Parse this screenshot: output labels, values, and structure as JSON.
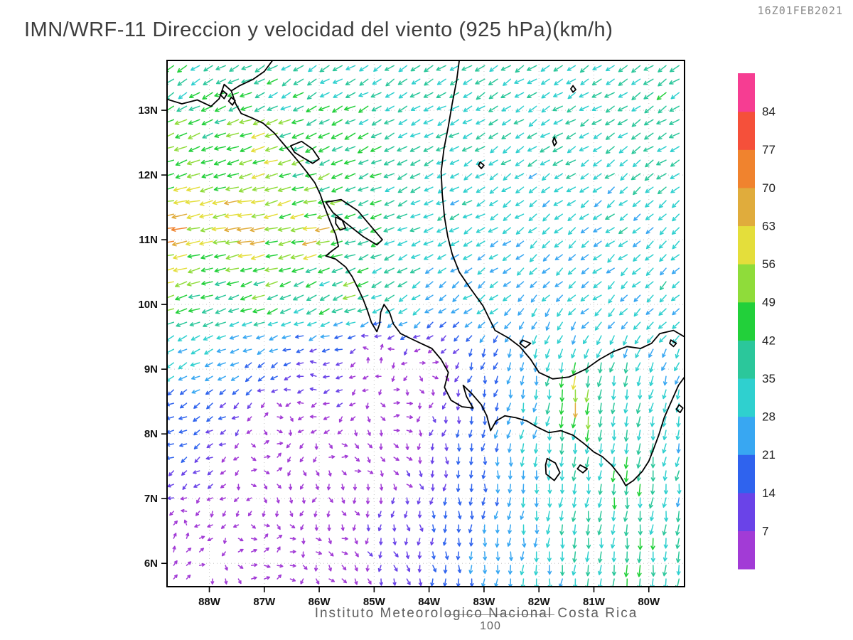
{
  "header": {
    "timestamp": "16Z01FEB2021",
    "title": "IMN/WRF-11 Direccion y velocidad del viento (925 hPa)(km/h)"
  },
  "footer": {
    "institution": "Instituto Meteorologico Nacional Costa Rica",
    "page_number": "100"
  },
  "chart_data": {
    "type": "vector_field",
    "variable": "wind direction and speed",
    "model": "IMN/WRF-11",
    "level_hPa": 925,
    "units": "km/h",
    "valid_time": "16Z01FEB2021",
    "region": "Costa Rica / Central America",
    "x_axis": {
      "tick_labels": [
        "88W",
        "87W",
        "86W",
        "85W",
        "84W",
        "83W",
        "82W",
        "81W",
        "80W"
      ],
      "tick_lons": [
        -88,
        -87,
        -86,
        -85,
        -84,
        -83,
        -82,
        -81,
        -80
      ],
      "range": [
        -88.77,
        -79.35
      ]
    },
    "y_axis": {
      "tick_labels": [
        "13N",
        "12N",
        "11N",
        "10N",
        "9N",
        "8N",
        "7N",
        "6N"
      ],
      "tick_lats": [
        13,
        12,
        11,
        10,
        9,
        8,
        7,
        6
      ],
      "range": [
        5.64,
        13.77
      ]
    },
    "colorbar": {
      "levels": [
        7,
        14,
        21,
        28,
        35,
        42,
        49,
        56,
        63,
        70,
        77,
        84
      ],
      "colors": [
        "#a23bd6",
        "#6a43e8",
        "#2f63ee",
        "#38a7f2",
        "#2fd0cf",
        "#2bc79b",
        "#22d03a",
        "#8fdc3a",
        "#e4de3b",
        "#e0ac3c",
        "#f0832e",
        "#f5503a",
        "#f63d92"
      ],
      "units": "km/h"
    },
    "wind_control_points": [
      [
        -88.6,
        13.6,
        -30,
        -22
      ],
      [
        -86.5,
        13.6,
        -30,
        -20
      ],
      [
        -84.5,
        13.6,
        -28,
        -18
      ],
      [
        -82.5,
        13.6,
        -32,
        -20
      ],
      [
        -79.8,
        13.6,
        -34,
        -22
      ],
      [
        -88.6,
        12.4,
        -48,
        -18
      ],
      [
        -87.0,
        12.4,
        -52,
        -16
      ],
      [
        -85.5,
        12.5,
        -40,
        -18
      ],
      [
        -83.5,
        12.5,
        -30,
        -16
      ],
      [
        -81.5,
        12.5,
        -30,
        -18
      ],
      [
        -79.8,
        12.5,
        -32,
        -20
      ],
      [
        -88.6,
        11.2,
        -68,
        -10
      ],
      [
        -87.2,
        11.2,
        -72,
        -8
      ],
      [
        -86.0,
        11.1,
        -62,
        -10
      ],
      [
        -84.8,
        11.3,
        -38,
        -14
      ],
      [
        -83.0,
        11.3,
        -28,
        -16
      ],
      [
        -80.5,
        11.2,
        -26,
        -18
      ],
      [
        -88.6,
        10.3,
        -52,
        -16
      ],
      [
        -87.0,
        10.2,
        -46,
        -16
      ],
      [
        -85.8,
        10.1,
        -36,
        -18
      ],
      [
        -85.3,
        10.15,
        -48,
        -16
      ],
      [
        -84.5,
        10.3,
        -32,
        -20
      ],
      [
        -83.0,
        10.2,
        -24,
        -16
      ],
      [
        -81.0,
        10.2,
        -24,
        -18
      ],
      [
        -79.7,
        10.0,
        -24,
        -20
      ],
      [
        -88.6,
        9.2,
        -28,
        -16
      ],
      [
        -87.2,
        9.0,
        -18,
        -10
      ],
      [
        -86.0,
        9.0,
        -6,
        2
      ],
      [
        -85.0,
        9.2,
        4,
        4
      ],
      [
        -84.0,
        9.0,
        6,
        2
      ],
      [
        -83.0,
        8.8,
        -2,
        -14
      ],
      [
        -82.3,
        8.8,
        -4,
        -26
      ],
      [
        -81.3,
        8.6,
        -4,
        -62
      ],
      [
        -80.6,
        8.4,
        -4,
        -38
      ],
      [
        -79.7,
        8.6,
        -6,
        -28
      ],
      [
        -88.7,
        8.4,
        -14,
        -8
      ],
      [
        -87.0,
        7.6,
        6,
        2
      ],
      [
        -85.5,
        7.6,
        7,
        0
      ],
      [
        -84.3,
        7.5,
        6,
        -4
      ],
      [
        -83.3,
        7.4,
        2,
        -16
      ],
      [
        -82.3,
        7.4,
        -2,
        -28
      ],
      [
        -81.3,
        7.4,
        -3,
        -34
      ],
      [
        -80.3,
        7.4,
        -4,
        -44
      ],
      [
        -79.6,
        7.4,
        -4,
        -30
      ],
      [
        -88.6,
        6.2,
        4,
        4
      ],
      [
        -87.0,
        6.1,
        6,
        3
      ],
      [
        -85.6,
        6.1,
        6,
        -2
      ],
      [
        -84.4,
        6.1,
        4,
        -10
      ],
      [
        -83.3,
        6.1,
        2,
        -20
      ],
      [
        -82.2,
        6.1,
        -2,
        -30
      ],
      [
        -81.0,
        6.1,
        -3,
        -36
      ],
      [
        -80.2,
        6.1,
        -4,
        -46
      ],
      [
        -79.6,
        6.1,
        -3,
        -34
      ],
      [
        -84.6,
        8.4,
        7,
        1
      ],
      [
        -86.8,
        8.3,
        6,
        2
      ]
    ],
    "coastlines": [
      [
        [
          -88.77,
          13.17
        ],
        [
          -88.5,
          13.1
        ],
        [
          -88.22,
          13.16
        ],
        [
          -87.97,
          13.06
        ],
        [
          -87.82,
          13.18
        ],
        [
          -87.73,
          13.4
        ],
        [
          -87.6,
          13.3
        ],
        [
          -87.52,
          13.1
        ],
        [
          -87.42,
          12.95
        ],
        [
          -87.22,
          12.88
        ],
        [
          -87.02,
          12.8
        ],
        [
          -86.82,
          12.65
        ],
        [
          -86.6,
          12.43
        ],
        [
          -86.4,
          12.23
        ],
        [
          -86.23,
          12.05
        ],
        [
          -86.08,
          11.88
        ],
        [
          -85.98,
          11.7
        ],
        [
          -85.9,
          11.5
        ],
        [
          -85.8,
          11.28
        ],
        [
          -85.7,
          11.08
        ],
        [
          -85.65,
          10.9
        ],
        [
          -85.78,
          10.82
        ],
        [
          -85.88,
          10.75
        ],
        [
          -85.7,
          10.7
        ],
        [
          -85.52,
          10.58
        ],
        [
          -85.4,
          10.43
        ],
        [
          -85.3,
          10.26
        ],
        [
          -85.2,
          10.08
        ],
        [
          -85.12,
          9.9
        ],
        [
          -85.05,
          9.72
        ],
        [
          -84.95,
          9.58
        ],
        [
          -84.9,
          9.7
        ],
        [
          -84.88,
          9.88
        ],
        [
          -84.82,
          10.0
        ],
        [
          -84.72,
          9.88
        ],
        [
          -84.65,
          9.7
        ],
        [
          -84.52,
          9.55
        ],
        [
          -84.35,
          9.48
        ],
        [
          -84.15,
          9.4
        ],
        [
          -83.95,
          9.32
        ],
        [
          -83.78,
          9.15
        ],
        [
          -83.65,
          8.95
        ],
        [
          -83.72,
          8.72
        ],
        [
          -83.6,
          8.52
        ],
        [
          -83.4,
          8.42
        ],
        [
          -83.2,
          8.4
        ],
        [
          -83.32,
          8.58
        ],
        [
          -83.38,
          8.75
        ],
        [
          -83.22,
          8.62
        ],
        [
          -83.05,
          8.45
        ],
        [
          -82.95,
          8.28
        ],
        [
          -82.88,
          8.05
        ],
        [
          -82.78,
          8.2
        ],
        [
          -82.62,
          8.28
        ],
        [
          -82.42,
          8.25
        ],
        [
          -82.22,
          8.2
        ],
        [
          -82.02,
          8.1
        ],
        [
          -81.82,
          8.02
        ],
        [
          -81.6,
          8.05
        ],
        [
          -81.38,
          7.98
        ],
        [
          -81.18,
          7.85
        ],
        [
          -81.0,
          7.72
        ],
        [
          -80.85,
          7.65
        ],
        [
          -80.68,
          7.52
        ],
        [
          -80.52,
          7.35
        ],
        [
          -80.42,
          7.2
        ],
        [
          -80.28,
          7.28
        ],
        [
          -80.12,
          7.42
        ],
        [
          -80.0,
          7.58
        ],
        [
          -79.92,
          7.75
        ],
        [
          -79.82,
          7.98
        ],
        [
          -79.72,
          8.25
        ],
        [
          -79.58,
          8.52
        ],
        [
          -79.46,
          8.75
        ],
        [
          -79.35,
          8.88
        ]
      ],
      [
        [
          -79.35,
          9.5
        ],
        [
          -79.55,
          9.6
        ],
        [
          -79.8,
          9.55
        ],
        [
          -79.95,
          9.4
        ],
        [
          -80.15,
          9.32
        ],
        [
          -80.4,
          9.35
        ],
        [
          -80.65,
          9.27
        ],
        [
          -80.9,
          9.15
        ],
        [
          -81.15,
          9.0
        ],
        [
          -81.45,
          8.88
        ],
        [
          -81.75,
          8.85
        ],
        [
          -82.0,
          8.95
        ],
        [
          -82.15,
          9.15
        ],
        [
          -82.35,
          9.35
        ],
        [
          -82.55,
          9.48
        ],
        [
          -82.8,
          9.6
        ],
        [
          -83.02,
          9.98
        ],
        [
          -83.25,
          10.25
        ],
        [
          -83.45,
          10.5
        ],
        [
          -83.58,
          10.78
        ],
        [
          -83.66,
          11.05
        ],
        [
          -83.72,
          11.35
        ],
        [
          -83.76,
          11.7
        ],
        [
          -83.78,
          12.05
        ],
        [
          -83.73,
          12.4
        ],
        [
          -83.65,
          12.75
        ],
        [
          -83.58,
          13.1
        ],
        [
          -83.5,
          13.45
        ],
        [
          -83.45,
          13.77
        ]
      ],
      [
        [
          -86.85,
          13.77
        ],
        [
          -87.0,
          13.6
        ],
        [
          -87.2,
          13.48
        ],
        [
          -87.45,
          13.38
        ],
        [
          -87.6,
          13.3
        ]
      ],
      [
        [
          -86.52,
          12.45
        ],
        [
          -86.32,
          12.52
        ],
        [
          -86.12,
          12.4
        ],
        [
          -86.0,
          12.25
        ],
        [
          -86.12,
          12.18
        ],
        [
          -86.3,
          12.27
        ],
        [
          -86.45,
          12.35
        ],
        [
          -86.52,
          12.45
        ]
      ],
      [
        [
          -85.88,
          11.58
        ],
        [
          -85.6,
          11.62
        ],
        [
          -85.3,
          11.45
        ],
        [
          -85.05,
          11.2
        ],
        [
          -84.85,
          11.0
        ],
        [
          -84.95,
          10.92
        ],
        [
          -85.2,
          11.05
        ],
        [
          -85.5,
          11.25
        ],
        [
          -85.75,
          11.42
        ],
        [
          -85.88,
          11.58
        ]
      ],
      [
        [
          -85.7,
          11.35
        ],
        [
          -85.58,
          11.3
        ],
        [
          -85.52,
          11.18
        ],
        [
          -85.62,
          11.15
        ],
        [
          -85.7,
          11.25
        ],
        [
          -85.7,
          11.35
        ]
      ]
    ],
    "islands": [
      [
        [
          -87.75,
          13.3
        ],
        [
          -87.68,
          13.25
        ],
        [
          -87.73,
          13.18
        ],
        [
          -87.8,
          13.24
        ],
        [
          -87.75,
          13.3
        ]
      ],
      [
        [
          -87.6,
          13.2
        ],
        [
          -87.53,
          13.15
        ],
        [
          -87.58,
          13.08
        ],
        [
          -87.65,
          13.14
        ],
        [
          -87.6,
          13.2
        ]
      ],
      [
        [
          -81.85,
          7.62
        ],
        [
          -81.7,
          7.55
        ],
        [
          -81.62,
          7.4
        ],
        [
          -81.72,
          7.28
        ],
        [
          -81.87,
          7.38
        ],
        [
          -81.88,
          7.52
        ],
        [
          -81.85,
          7.62
        ]
      ],
      [
        [
          -81.25,
          7.52
        ],
        [
          -81.12,
          7.46
        ],
        [
          -81.2,
          7.4
        ],
        [
          -81.3,
          7.46
        ],
        [
          -81.25,
          7.52
        ]
      ],
      [
        [
          -81.72,
          12.58
        ],
        [
          -81.68,
          12.5
        ],
        [
          -81.72,
          12.45
        ],
        [
          -81.75,
          12.52
        ],
        [
          -81.72,
          12.58
        ]
      ],
      [
        [
          -81.38,
          13.38
        ],
        [
          -81.33,
          13.32
        ],
        [
          -81.38,
          13.28
        ],
        [
          -81.42,
          13.33
        ],
        [
          -81.38,
          13.38
        ]
      ],
      [
        [
          -83.07,
          12.2
        ],
        [
          -83.0,
          12.15
        ],
        [
          -83.05,
          12.1
        ],
        [
          -83.1,
          12.15
        ],
        [
          -83.07,
          12.2
        ]
      ],
      [
        [
          -82.3,
          9.45
        ],
        [
          -82.15,
          9.4
        ],
        [
          -82.25,
          9.33
        ],
        [
          -82.35,
          9.4
        ],
        [
          -82.3,
          9.45
        ]
      ],
      [
        [
          -79.6,
          9.45
        ],
        [
          -79.5,
          9.4
        ],
        [
          -79.55,
          9.35
        ],
        [
          -79.62,
          9.4
        ],
        [
          -79.6,
          9.45
        ]
      ],
      [
        [
          -79.45,
          8.45
        ],
        [
          -79.38,
          8.4
        ],
        [
          -79.43,
          8.33
        ],
        [
          -79.5,
          8.38
        ],
        [
          -79.45,
          8.45
        ]
      ]
    ],
    "grid": {
      "cols": 40,
      "rows": 39
    }
  }
}
